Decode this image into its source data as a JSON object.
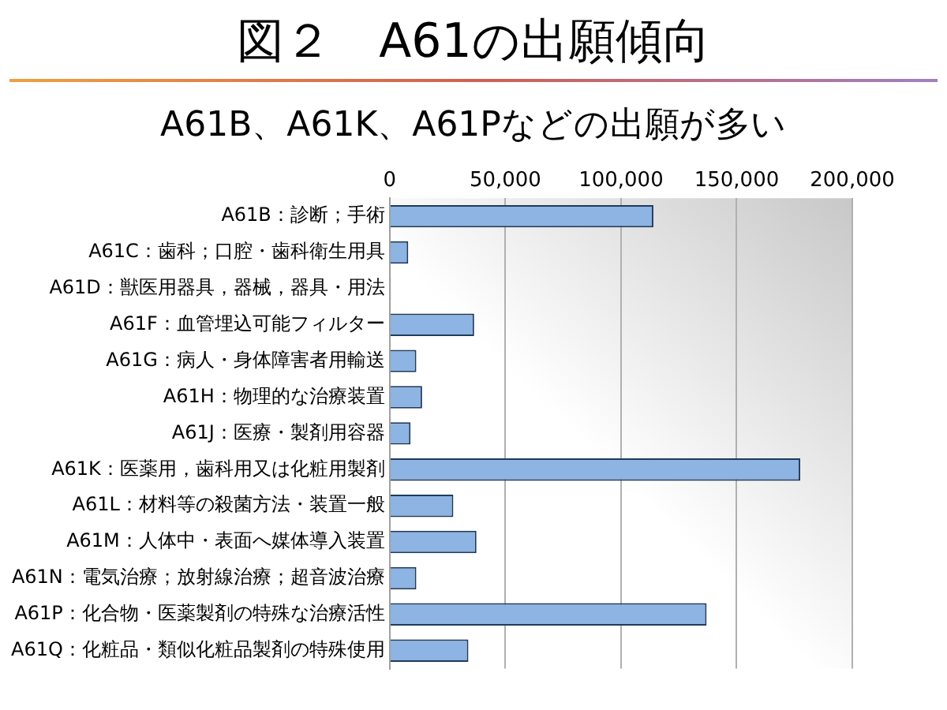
{
  "chart_data": {
    "type": "bar",
    "orientation": "horizontal",
    "title": "図２　A61の出願傾向",
    "subtitle": "A61B、A61K、A61Pなどの出願が多い",
    "categories": [
      "A61B：診断；手術",
      "A61C：歯科；口腔・歯科衛生用具",
      "A61D：獣医用器具，器械，器具・用法",
      "A61F：血管埋込可能フィルター",
      "A61G：病人・身体障害者用輸送",
      "A61H：物理的な治療装置",
      "A61J：医療・製剤用容器",
      "A61K：医薬用，歯科用又は化粧用製剤",
      "A61L：材料等の殺菌方法・装置一般",
      "A61M：人体中・表面へ媒体導入装置",
      "A61N：電気治療；放射線治療；超音波治療",
      "A61P：化合物・医薬製剤の特殊な治療活性",
      "A61Q：化粧品・類似化粧品製剤の特殊使用"
    ],
    "values": [
      114000,
      8000,
      500,
      36500,
      11500,
      14000,
      9000,
      177500,
      27500,
      37500,
      11500,
      137000,
      34000
    ],
    "color": "#8db4e2",
    "xlim": [
      0,
      200000
    ],
    "xticks": [
      0,
      {
        "value": 50000,
        "label": "50,000"
      },
      {
        "value": 100000,
        "label": "100,000"
      },
      {
        "value": 150000,
        "label": "150,000"
      },
      {
        "value": 200000,
        "label": "200,000"
      }
    ],
    "grid": "x",
    "legend": false
  }
}
